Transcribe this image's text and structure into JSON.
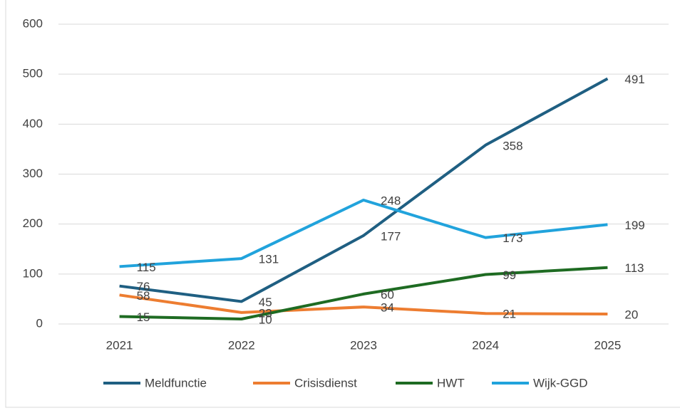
{
  "chart_data": {
    "type": "line",
    "categories": [
      "2021",
      "2022",
      "2023",
      "2024",
      "2025"
    ],
    "series": [
      {
        "name": "Meldfunctie",
        "color": "#1f5f82",
        "values": [
          76,
          45,
          177,
          358,
          491
        ]
      },
      {
        "name": "Crisisdienst",
        "color": "#ed7d31",
        "values": [
          58,
          23,
          34,
          21,
          20
        ]
      },
      {
        "name": "HWT",
        "color": "#1e6b22",
        "values": [
          15,
          10,
          60,
          99,
          113
        ]
      },
      {
        "name": "Wijk-GGD",
        "color": "#21a3dc",
        "values": [
          115,
          131,
          248,
          173,
          199
        ]
      }
    ],
    "ylim": [
      0,
      600
    ],
    "yticks": [
      0,
      100,
      200,
      300,
      400,
      500,
      600
    ],
    "grid": true,
    "legend": "bottom"
  }
}
